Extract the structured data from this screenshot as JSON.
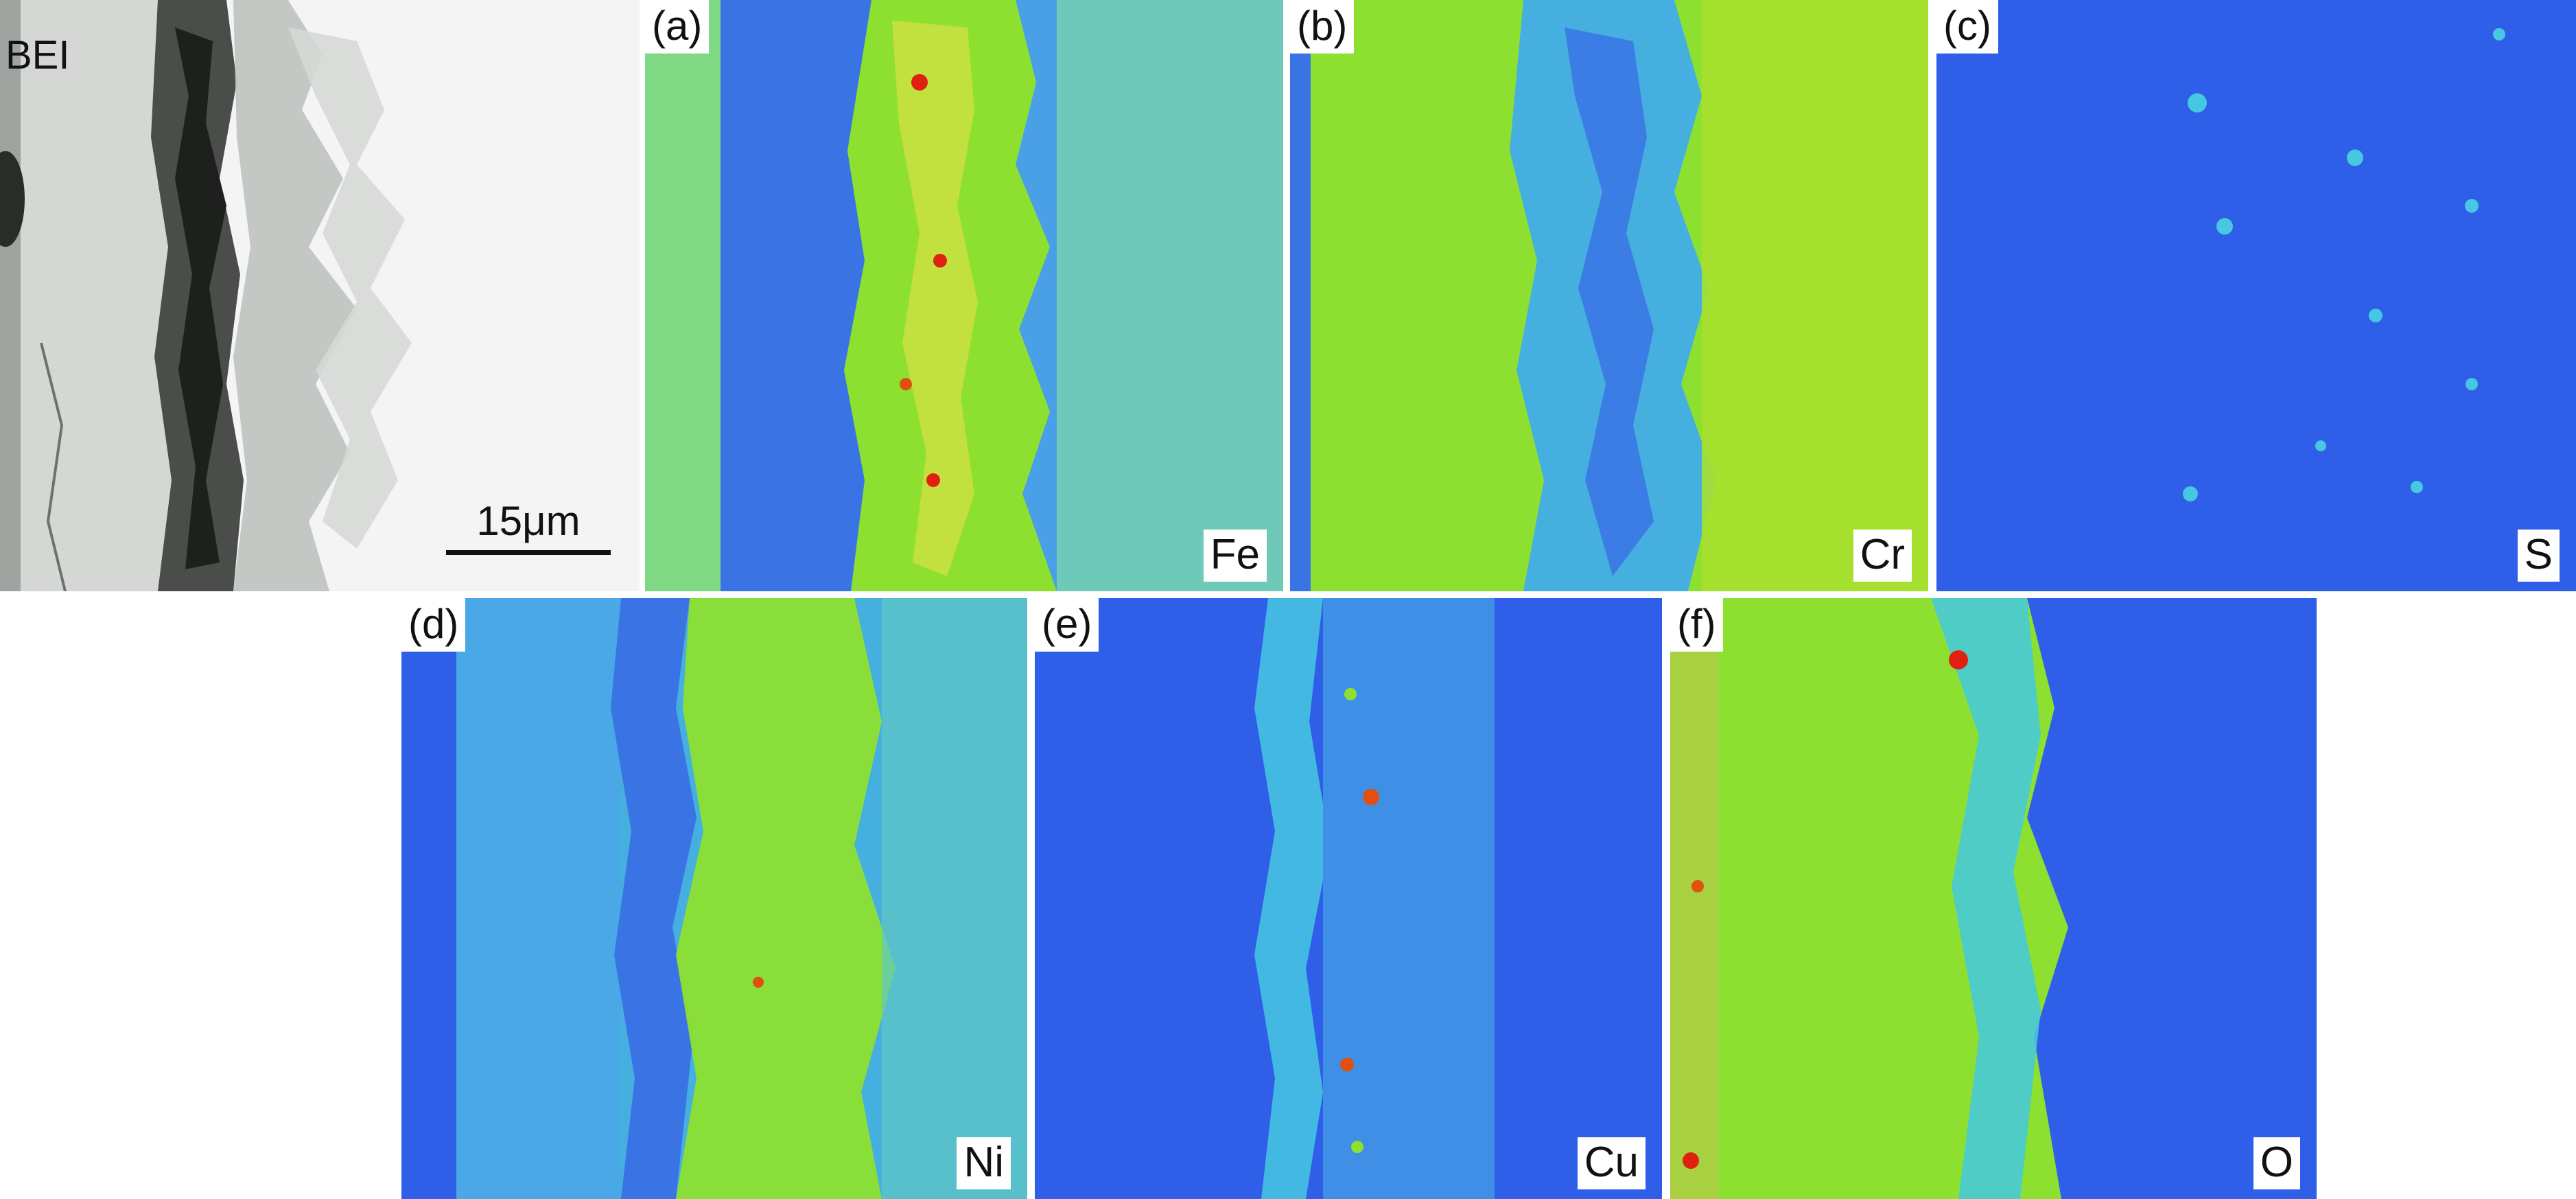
{
  "bei": {
    "label": "BEI",
    "scale_bar": "15μm"
  },
  "panels": [
    {
      "id": "a",
      "tag": "(a)",
      "element": "Fe"
    },
    {
      "id": "b",
      "tag": "(b)",
      "element": "Cr"
    },
    {
      "id": "c",
      "tag": "(c)",
      "element": "S"
    },
    {
      "id": "d",
      "tag": "(d)",
      "element": "Ni"
    },
    {
      "id": "e",
      "tag": "(e)",
      "element": "Cu"
    },
    {
      "id": "f",
      "tag": "(f)",
      "element": "O"
    }
  ],
  "colors": {
    "map_low": "#2f5fe8",
    "map_mid": "#45c8e0",
    "map_high": "#8ee030",
    "map_peak": "#e02010",
    "bei_light": "#e9ebe9"
  }
}
